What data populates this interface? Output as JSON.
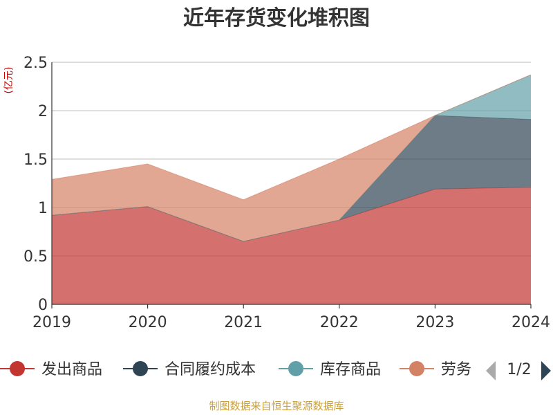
{
  "chart_data": {
    "type": "area",
    "stacked": true,
    "title": "近年存货变化堆积图",
    "ylabel": "亿元",
    "ylim": [
      0,
      2.5
    ],
    "yticks": [
      "0",
      "0.5",
      "1",
      "1.5",
      "2",
      "2.5"
    ],
    "x": [
      "2019",
      "2020",
      "2021",
      "2022",
      "2023",
      "2024"
    ],
    "grid": true,
    "legend_position": "bottom",
    "legend_page": "1/2",
    "series": [
      {
        "name": "发出商品",
        "color": "#c23531",
        "values": [
          0.92,
          1.01,
          0.65,
          0.87,
          1.19,
          1.21
        ]
      },
      {
        "name": "合同履约成本",
        "color": "#2f4554",
        "values": [
          0,
          0,
          0,
          0,
          0.76,
          0.7
        ]
      },
      {
        "name": "库存商品",
        "color": "#61a0a8",
        "values": [
          0,
          0,
          0,
          0,
          0,
          0.46
        ]
      },
      {
        "name": "劳务",
        "color": "#d48265",
        "values": [
          0.37,
          0.44,
          0.43,
          0.63,
          0,
          0
        ]
      }
    ],
    "source": "制图数据来自恒生聚源数据库"
  }
}
